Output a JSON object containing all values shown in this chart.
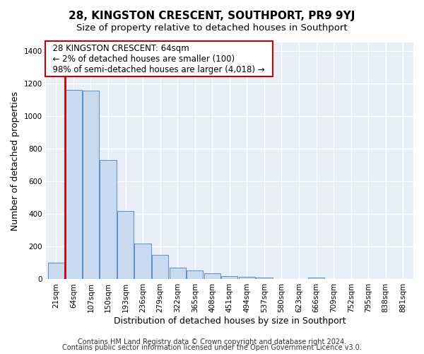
{
  "title": "28, KINGSTON CRESCENT, SOUTHPORT, PR9 9YJ",
  "subtitle": "Size of property relative to detached houses in Southport",
  "xlabel": "Distribution of detached houses by size in Southport",
  "ylabel": "Number of detached properties",
  "bar_labels": [
    "21sqm",
    "64sqm",
    "107sqm",
    "150sqm",
    "193sqm",
    "236sqm",
    "279sqm",
    "322sqm",
    "365sqm",
    "408sqm",
    "451sqm",
    "494sqm",
    "537sqm",
    "580sqm",
    "623sqm",
    "666sqm",
    "709sqm",
    "752sqm",
    "795sqm",
    "838sqm",
    "881sqm"
  ],
  "bar_values": [
    100,
    1160,
    1155,
    730,
    420,
    220,
    148,
    72,
    52,
    35,
    20,
    16,
    12,
    0,
    0,
    10,
    0,
    0,
    0,
    0,
    0
  ],
  "bar_color": "#c9d9f0",
  "bar_edge_color": "#5b8ec4",
  "highlight_bar_index": 1,
  "highlight_color": "#cc0000",
  "annotation_title": "28 KINGSTON CRESCENT: 64sqm",
  "annotation_line1": "← 2% of detached houses are smaller (100)",
  "annotation_line2": "98% of semi-detached houses are larger (4,018) →",
  "annotation_box_color": "#ffffff",
  "annotation_box_edge_color": "#cc0000",
  "ylim": [
    0,
    1450
  ],
  "yticks": [
    0,
    200,
    400,
    600,
    800,
    1000,
    1200,
    1400
  ],
  "footer1": "Contains HM Land Registry data © Crown copyright and database right 2024.",
  "footer2": "Contains public sector information licensed under the Open Government Licence v3.0.",
  "bg_color": "#ffffff",
  "plot_bg_color": "#e8eef8",
  "grid_color": "#ffffff",
  "title_fontsize": 11,
  "subtitle_fontsize": 9.5,
  "axis_label_fontsize": 9,
  "tick_fontsize": 7.5,
  "footer_fontsize": 7
}
